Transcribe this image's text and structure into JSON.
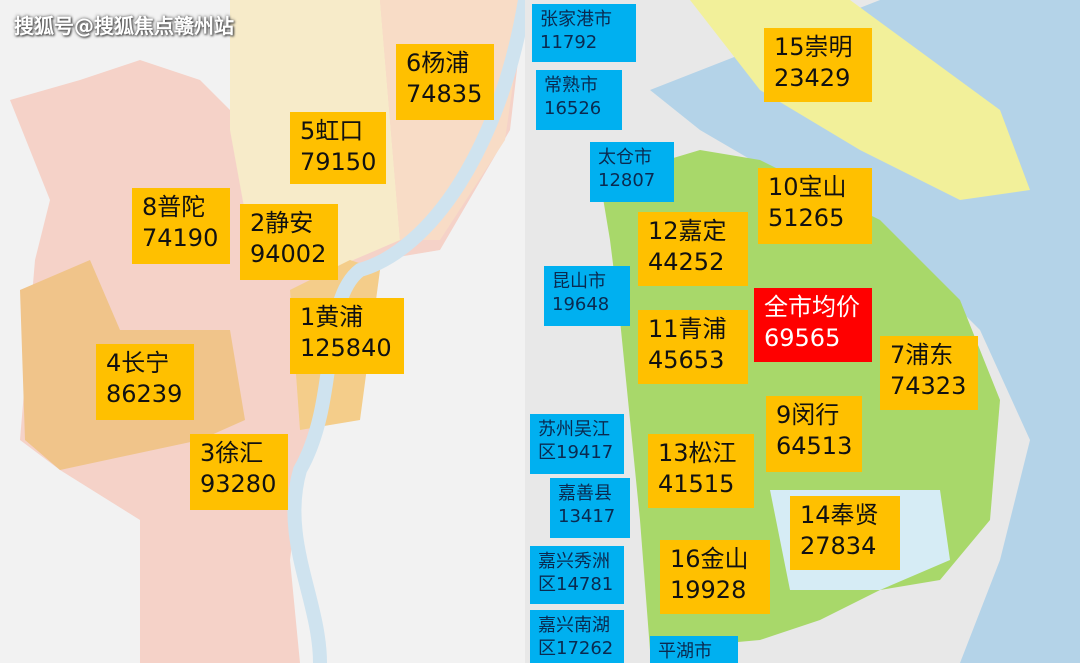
{
  "watermark": "搜狐号@搜狐焦点赣州站",
  "labels": [
    {
      "name": "6杨浦",
      "price": "74835"
    },
    {
      "name": "5虹口",
      "price": "79150"
    },
    {
      "name": "8普陀",
      "price": "74190"
    },
    {
      "name": "2静安",
      "price": "94002"
    },
    {
      "name": "1黄浦",
      "price": "125840"
    },
    {
      "name": "4长宁",
      "price": "86239"
    },
    {
      "name": "3徐汇",
      "price": "93280"
    },
    {
      "name": "15崇明",
      "price": "23429"
    },
    {
      "name": "10宝山",
      "price": "51265"
    },
    {
      "name": "12嘉定",
      "price": "44252"
    },
    {
      "name": "11青浦",
      "price": "45653"
    },
    {
      "name": "全市均价",
      "price": "69565"
    },
    {
      "name": "7浦东",
      "price": "74323"
    },
    {
      "name": "9闵行",
      "price": "64513"
    },
    {
      "name": "13松江",
      "price": "41515"
    },
    {
      "name": "14奉贤",
      "price": "27834"
    },
    {
      "name": "16金山",
      "price": "19928"
    },
    {
      "name": "张家港市",
      "price": "11792"
    },
    {
      "name": "常熟市",
      "price": "16526"
    },
    {
      "name": "太仓市",
      "price": "12807"
    },
    {
      "name": "昆山市",
      "price": "19648"
    },
    {
      "name": "苏州吴江",
      "price": "区19417"
    },
    {
      "name": "嘉善县",
      "price": "13417"
    },
    {
      "name": "嘉兴秀洲",
      "price": "区14781"
    },
    {
      "name": "嘉兴南湖",
      "price": "区17262"
    },
    {
      "name": "平湖市"
    }
  ]
}
